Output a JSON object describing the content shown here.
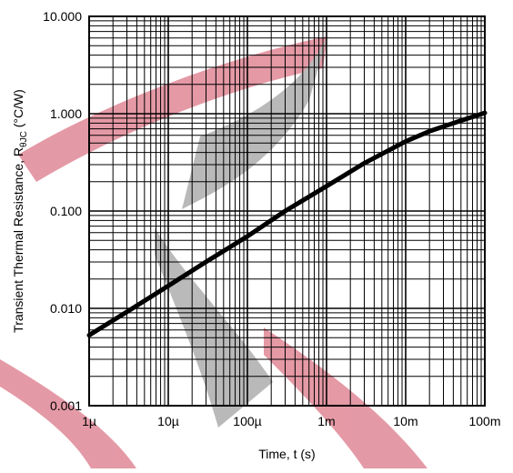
{
  "chart_data": {
    "type": "line",
    "title": "",
    "xlabel": "Time, t (s)",
    "ylabel_main": "Transient Thermal Resistance, R",
    "ylabel_sub": "θJC",
    "ylabel_unit": " (°C/W)",
    "x_scale": "log",
    "y_scale": "log",
    "xlim": [
      1e-06,
      0.1
    ],
    "ylim": [
      0.001,
      10
    ],
    "x_ticks": [
      1e-06,
      1e-05,
      0.0001,
      0.001,
      0.01,
      0.1
    ],
    "x_tick_labels": [
      "1µ",
      "10µ",
      "100µ",
      "1m",
      "10m",
      "100m"
    ],
    "y_ticks": [
      0.001,
      0.01,
      0.1,
      1,
      10
    ],
    "y_tick_labels": [
      "0.001",
      "0.010",
      "0.100",
      "1.000",
      "10.000"
    ],
    "grid": true,
    "line_color": "#000000",
    "grid_color": "#000000",
    "series": [
      {
        "x": [
          1e-06,
          3e-06,
          1e-05,
          3e-05,
          0.0001,
          0.0003,
          0.001,
          0.003,
          0.01,
          0.02,
          0.05,
          0.1
        ],
        "y": [
          0.0053,
          0.0092,
          0.017,
          0.03,
          0.055,
          0.1,
          0.18,
          0.31,
          0.52,
          0.66,
          0.85,
          1.02
        ]
      }
    ]
  }
}
